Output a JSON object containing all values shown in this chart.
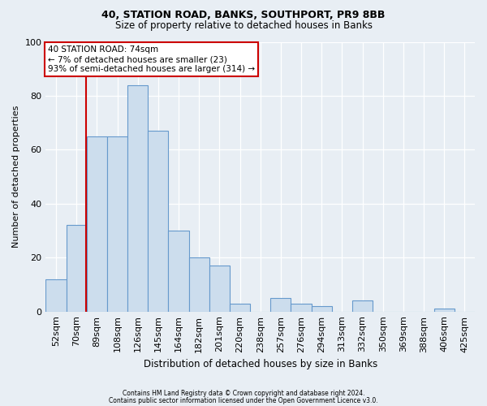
{
  "title1": "40, STATION ROAD, BANKS, SOUTHPORT, PR9 8BB",
  "title2": "Size of property relative to detached houses in Banks",
  "xlabel": "Distribution of detached houses by size in Banks",
  "ylabel": "Number of detached properties",
  "footer1": "Contains HM Land Registry data © Crown copyright and database right 2024.",
  "footer2": "Contains public sector information licensed under the Open Government Licence v3.0.",
  "bin_labels": [
    "52sqm",
    "70sqm",
    "89sqm",
    "108sqm",
    "126sqm",
    "145sqm",
    "164sqm",
    "182sqm",
    "201sqm",
    "220sqm",
    "238sqm",
    "257sqm",
    "276sqm",
    "294sqm",
    "313sqm",
    "332sqm",
    "350sqm",
    "369sqm",
    "388sqm",
    "406sqm",
    "425sqm"
  ],
  "bar_values": [
    12,
    32,
    65,
    65,
    84,
    67,
    30,
    20,
    17,
    3,
    0,
    5,
    3,
    2,
    0,
    4,
    0,
    0,
    0,
    1,
    0
  ],
  "bar_color": "#ccdded",
  "bar_edge_color": "#6699cc",
  "ylim": [
    0,
    100
  ],
  "yticks": [
    0,
    20,
    40,
    60,
    80,
    100
  ],
  "vline_x": 1.48,
  "annotation_text": "40 STATION ROAD: 74sqm\n← 7% of detached houses are smaller (23)\n93% of semi-detached houses are larger (314) →",
  "annotation_box_color": "white",
  "annotation_box_edge_color": "#cc0000",
  "vline_color": "#cc0000",
  "background_color": "#e8eef4",
  "grid_color": "#ffffff",
  "title1_fontsize": 9,
  "title2_fontsize": 8.5
}
